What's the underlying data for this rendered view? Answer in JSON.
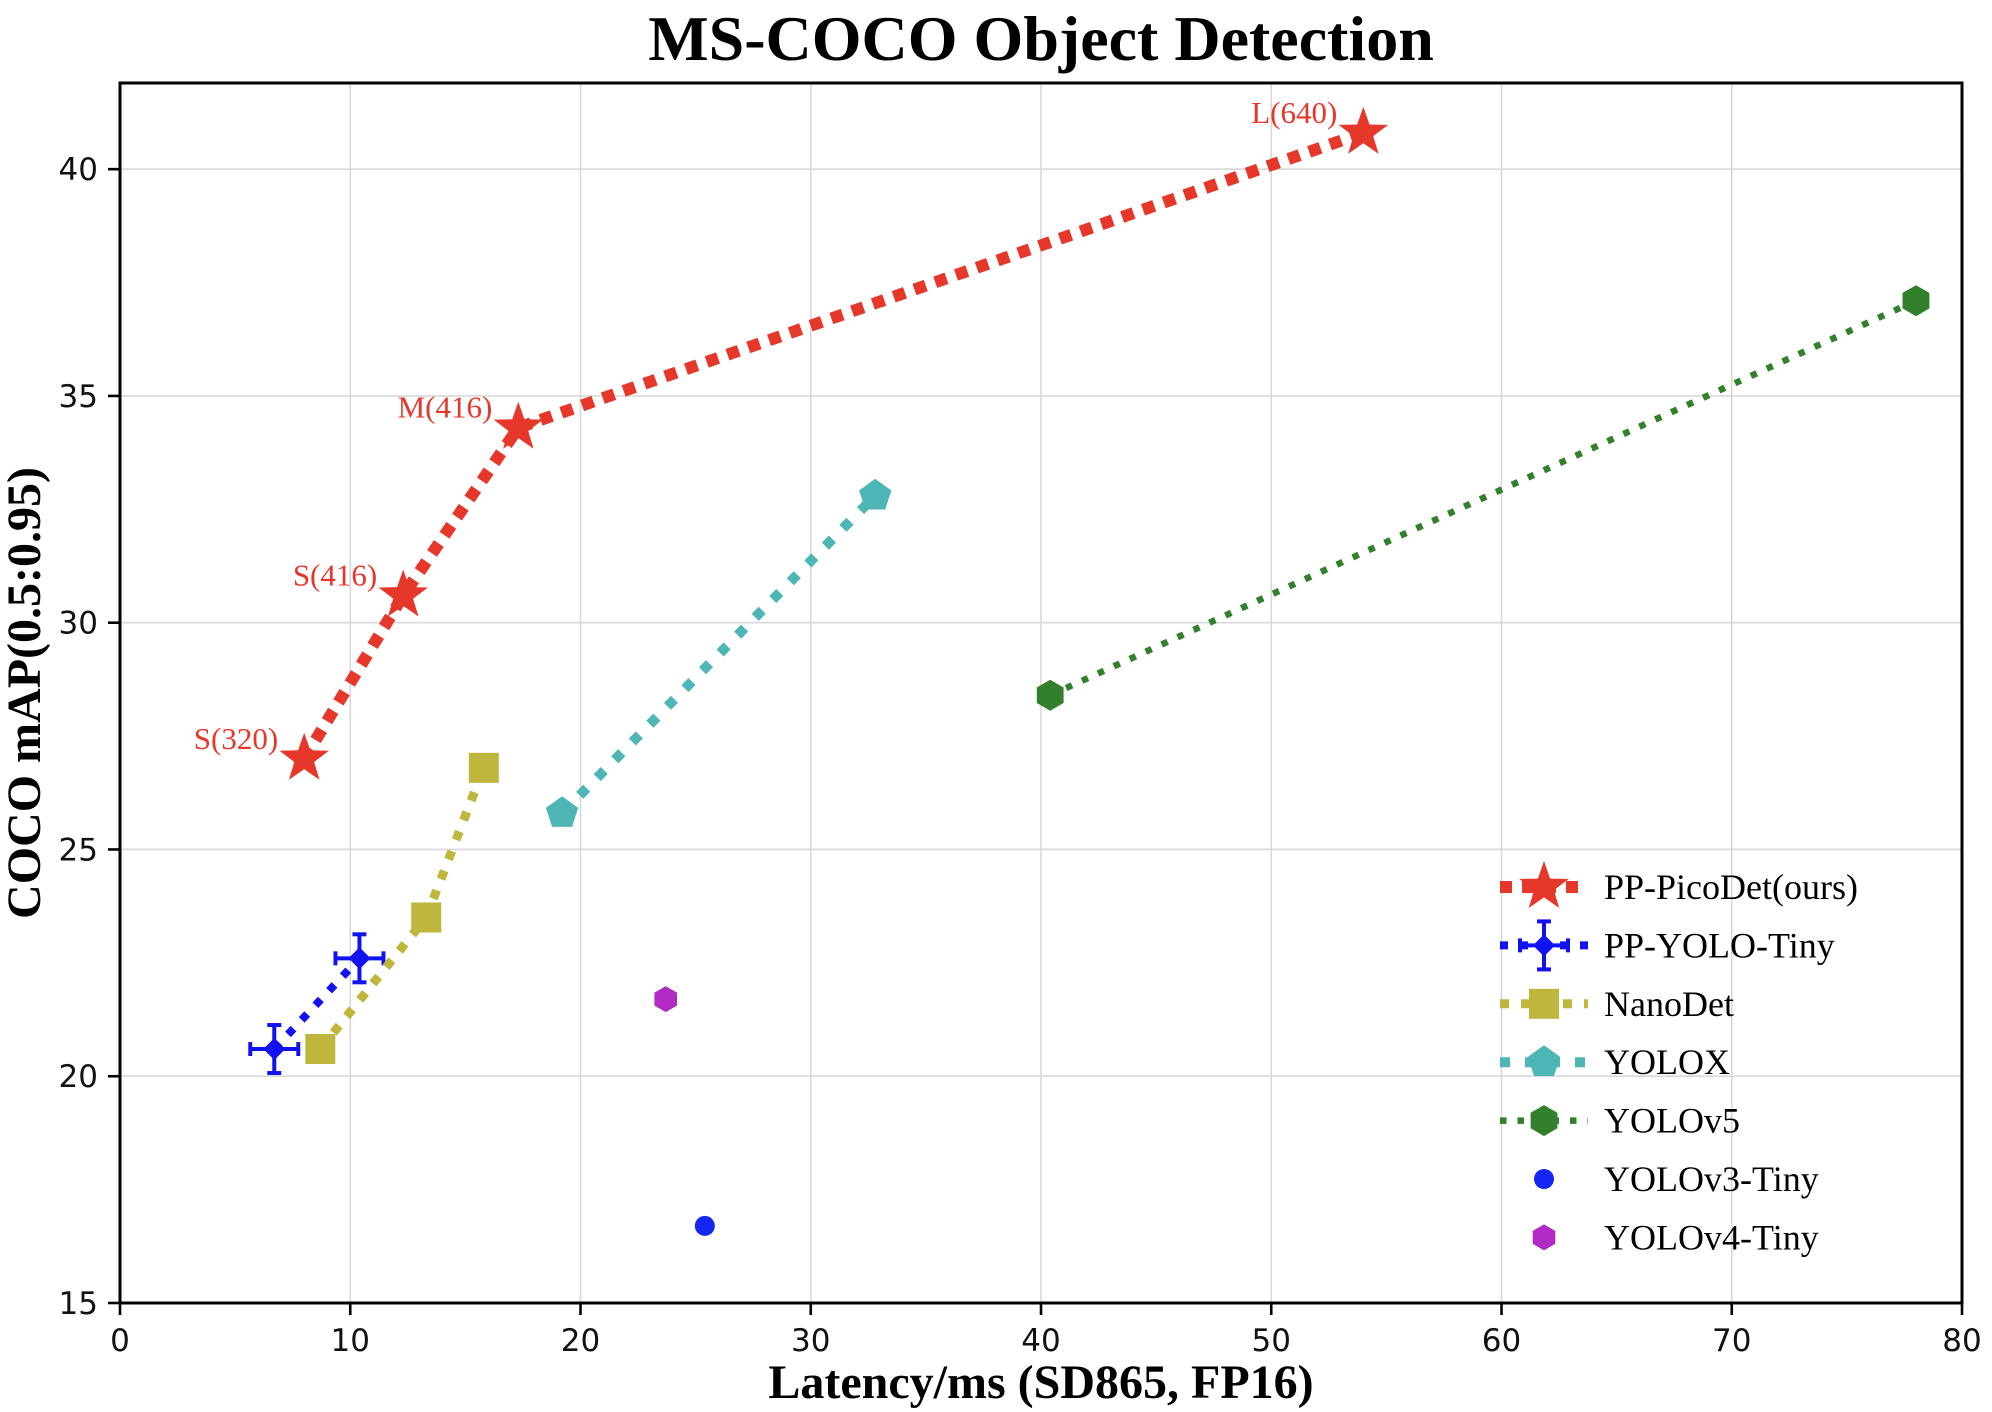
{
  "chart_data": {
    "type": "scatter",
    "title": "MS-COCO Object Detection",
    "xlabel": "Latency/ms (SD865, FP16)",
    "ylabel": "COCO mAP(0.5:0.95)",
    "xlim": [
      0,
      80
    ],
    "ylim": [
      15,
      41.9
    ],
    "xticks": [
      0,
      10,
      20,
      30,
      40,
      50,
      60,
      70,
      80
    ],
    "yticks": [
      15,
      20,
      25,
      30,
      35,
      40
    ],
    "grid": true,
    "legend": {
      "position": "lower right",
      "entries": [
        "PP-PicoDet(ours)",
        "PP-YOLO-Tiny",
        "NanoDet",
        "YOLOX",
        "YOLOv5",
        "YOLOv3-Tiny",
        "YOLOv4-Tiny"
      ]
    },
    "series": [
      {
        "name": "PP-PicoDet(ours)",
        "color": "#e6372b",
        "marker": "star",
        "line_style": "dotted-bold",
        "points": [
          {
            "x": 8.0,
            "y": 27.0,
            "label": "S(320)"
          },
          {
            "x": 12.3,
            "y": 30.6,
            "label": "S(416)"
          },
          {
            "x": 17.3,
            "y": 34.3,
            "label": "M(416)"
          },
          {
            "x": 54.0,
            "y": 40.8,
            "label": "L(640)"
          }
        ]
      },
      {
        "name": "PP-YOLO-Tiny",
        "color": "#1212f0",
        "marker": "plus-errorbar",
        "line_style": "dotted",
        "points": [
          {
            "x": 6.7,
            "y": 20.6
          },
          {
            "x": 10.4,
            "y": 22.6
          }
        ]
      },
      {
        "name": "NanoDet",
        "color": "#bfb63e",
        "marker": "square",
        "line_style": "dotted-med",
        "points": [
          {
            "x": 8.7,
            "y": 20.6
          },
          {
            "x": 13.3,
            "y": 23.5
          },
          {
            "x": 15.8,
            "y": 26.8
          }
        ]
      },
      {
        "name": "YOLOX",
        "color": "#4fb6b6",
        "marker": "pentagon",
        "line_style": "dotted-wide",
        "points": [
          {
            "x": 19.2,
            "y": 25.8
          },
          {
            "x": 32.8,
            "y": 32.8
          }
        ]
      },
      {
        "name": "YOLOv5",
        "color": "#33802c",
        "marker": "hexagon",
        "line_style": "dotted-fine",
        "points": [
          {
            "x": 40.4,
            "y": 28.4
          },
          {
            "x": 78.0,
            "y": 37.1
          }
        ]
      },
      {
        "name": "YOLOv3-Tiny",
        "color": "#1626f2",
        "marker": "circle",
        "line_style": "none",
        "points": [
          {
            "x": 25.4,
            "y": 16.7
          }
        ]
      },
      {
        "name": "YOLOv4-Tiny",
        "color": "#b02cc5",
        "marker": "hexagon-small",
        "line_style": "none",
        "points": [
          {
            "x": 23.7,
            "y": 21.7
          }
        ]
      }
    ]
  }
}
